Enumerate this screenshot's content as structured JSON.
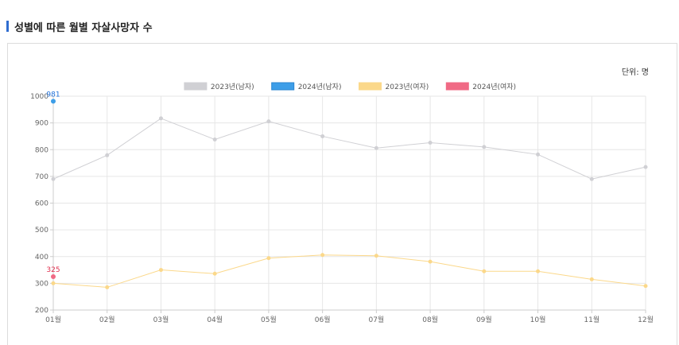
{
  "header": {
    "title": "성별에 따른 월별 자살사망자 수"
  },
  "unit_label": "단위: 명",
  "colors": {
    "accent": "#2f6dd0",
    "male2023": "#d0d0d4",
    "male2024": "#3d9ee8",
    "female2023": "#fbd88a",
    "female2024": "#f06a85"
  },
  "chart_data": {
    "type": "line",
    "title": "",
    "xlabel": "",
    "ylabel": "",
    "categories": [
      "01월",
      "02월",
      "03월",
      "04월",
      "05월",
      "06월",
      "07월",
      "08월",
      "09월",
      "10월",
      "11월",
      "12월"
    ],
    "ylim": [
      200,
      1000
    ],
    "yticks": [
      200,
      300,
      400,
      500,
      600,
      700,
      800,
      900,
      1000
    ],
    "grid": true,
    "legend_position": "top-center",
    "series": [
      {
        "name": "2023년(남자)",
        "color": "#d0d0d4",
        "values": [
          690,
          779,
          917,
          838,
          906,
          850,
          806,
          826,
          810,
          782,
          690,
          735
        ]
      },
      {
        "name": "2024년(남자)",
        "color": "#3d9ee8",
        "values": [
          981,
          null,
          null,
          null,
          null,
          null,
          null,
          null,
          null,
          null,
          null,
          null
        ],
        "data_labels": [
          "981"
        ]
      },
      {
        "name": "2023년(여자)",
        "color": "#fbd88a",
        "values": [
          300,
          285,
          350,
          336,
          394,
          406,
          403,
          381,
          345,
          345,
          315,
          290
        ]
      },
      {
        "name": "2024년(여자)",
        "color": "#f06a85",
        "values": [
          325,
          null,
          null,
          null,
          null,
          null,
          null,
          null,
          null,
          null,
          null,
          null
        ],
        "data_labels": [
          "325"
        ]
      }
    ]
  }
}
